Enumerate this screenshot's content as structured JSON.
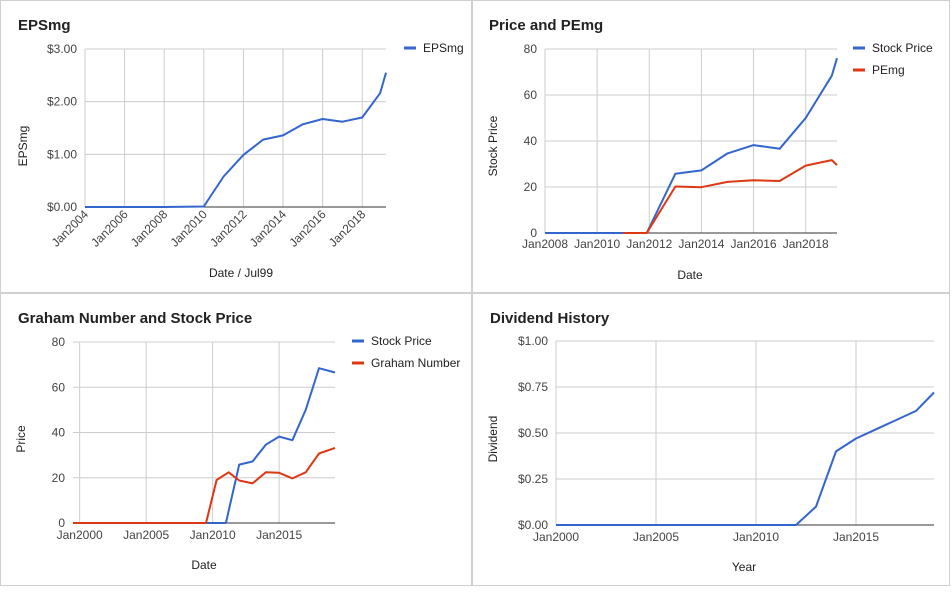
{
  "colors": {
    "blue": "#3366cc",
    "red": "#dc3912"
  },
  "chart_data": [
    {
      "type": "line",
      "title": "EPSmg",
      "xlabel": "Date / Jul99",
      "ylabel": "EPSmg",
      "x_tick_labels": [
        "Jan2004",
        "Jan2006",
        "Jan2008",
        "Jan2010",
        "Jan2012",
        "Jan2014",
        "Jan2016",
        "Jan2018"
      ],
      "y_tick_labels": [
        "$0.00",
        "$1.00",
        "$2.00",
        "$3.00"
      ],
      "xlim": [
        2004,
        2019.2
      ],
      "ylim": [
        0,
        3
      ],
      "legend_position": "top-right",
      "series": [
        {
          "name": "EPSmg",
          "color": "#3366cc",
          "x": [
            2004,
            2006,
            2008,
            2010,
            2011,
            2012,
            2013,
            2014,
            2015,
            2016,
            2017,
            2018,
            2018.9,
            2019.2
          ],
          "y": [
            0,
            0,
            0,
            0.01,
            0.58,
            0.99,
            1.28,
            1.36,
            1.57,
            1.67,
            1.62,
            1.7,
            2.16,
            2.55
          ]
        }
      ]
    },
    {
      "type": "line",
      "title": "Price and PEmg",
      "xlabel": "Date",
      "ylabel": "Stock Price",
      "x_tick_labels": [
        "Jan2008",
        "Jan2010",
        "Jan2012",
        "Jan2014",
        "Jan2016",
        "Jan2018"
      ],
      "y_tick_labels": [
        "0",
        "20",
        "40",
        "60",
        "80"
      ],
      "xlim": [
        2008,
        2019.2
      ],
      "ylim": [
        0,
        80
      ],
      "legend_position": "top-right",
      "series": [
        {
          "name": "Stock Price",
          "color": "#3366cc",
          "x": [
            2008,
            2010,
            2011.9,
            2013,
            2014,
            2015,
            2016,
            2017,
            2018,
            2019,
            2019.2
          ],
          "y": [
            0,
            0,
            0,
            25.8,
            27.2,
            34.6,
            38.2,
            36.6,
            50,
            68.4,
            76
          ]
        },
        {
          "name": "PEmg",
          "color": "#dc3912",
          "x": [
            2011,
            2011.9,
            2013,
            2014,
            2015,
            2016,
            2017,
            2018,
            2019,
            2019.2
          ],
          "y": [
            0,
            0,
            20.2,
            19.9,
            22.2,
            22.9,
            22.6,
            29.3,
            31.7,
            29.5
          ]
        }
      ]
    },
    {
      "type": "line",
      "title": "Graham Number and Stock Price",
      "xlabel": "Date",
      "ylabel": "Price",
      "x_tick_labels": [
        "Jan2000",
        "Jan2005",
        "Jan2010",
        "Jan2015"
      ],
      "y_tick_labels": [
        "0",
        "20",
        "40",
        "60",
        "80"
      ],
      "xlim": [
        1999.5,
        2019.2
      ],
      "ylim": [
        0,
        80
      ],
      "legend_position": "top-right",
      "series": [
        {
          "name": "Stock Price",
          "color": "#3366cc",
          "x": [
            1999.5,
            2011,
            2012,
            2013,
            2014,
            2015,
            2016,
            2017,
            2018,
            2019.2
          ],
          "y": [
            0,
            0,
            25.8,
            27.2,
            34.6,
            38.2,
            36.6,
            50,
            68.4,
            66.5
          ]
        },
        {
          "name": "Graham Number",
          "color": "#dc3912",
          "x": [
            1999.5,
            2009.5,
            2010.3,
            2011.2,
            2012,
            2013,
            2014,
            2015,
            2016,
            2017,
            2018,
            2019.2
          ],
          "y": [
            0,
            0,
            19,
            22.4,
            18.8,
            17.5,
            22.4,
            22.2,
            19.7,
            22.4,
            30.7,
            33.2
          ]
        }
      ]
    },
    {
      "type": "line",
      "title": "Dividend History",
      "xlabel": "Year",
      "ylabel": "Dividend",
      "x_tick_labels": [
        "Jan2000",
        "Jan2005",
        "Jan2010",
        "Jan2015"
      ],
      "y_tick_labels": [
        "$0.00",
        "$0.25",
        "$0.50",
        "$0.75",
        "$1.00"
      ],
      "xlim": [
        2000,
        2018.9
      ],
      "ylim": [
        0,
        1
      ],
      "legend_position": "none",
      "series": [
        {
          "name": "",
          "color": "#3366cc",
          "x": [
            2000,
            2012,
            2013,
            2014,
            2015,
            2016,
            2017,
            2018,
            2018.9
          ],
          "y": [
            0,
            0,
            0.1,
            0.4,
            0.47,
            0.52,
            0.57,
            0.62,
            0.72
          ]
        }
      ]
    }
  ]
}
